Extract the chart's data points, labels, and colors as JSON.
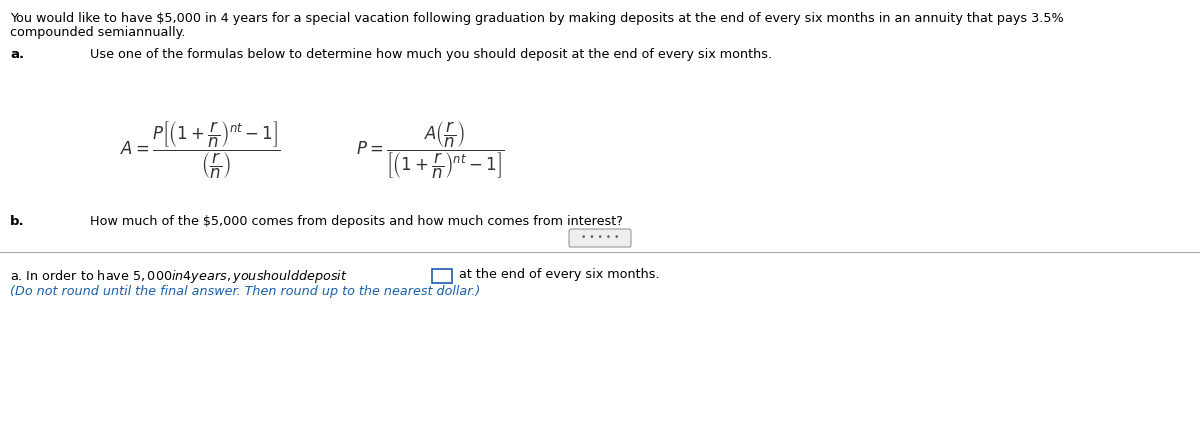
{
  "title_line1": "You would like to have $5,000 in 4 years for a special vacation following graduation by making deposits at the end of every six months in an annuity that pays 3.5%",
  "title_line2": "compounded semiannually.",
  "part_a_label": "a.",
  "part_a_text": "Use one of the formulas below to determine how much you should deposit at the end of every six months.",
  "part_b_label": "b.",
  "part_b_text": "How much of the $5,000 comes from deposits and how much comes from interest?",
  "answer_line1_pre": "a. In order to have $5,000 in 4 years, you should deposit $",
  "answer_line1_post": " at the end of every six months.",
  "answer_line2": "(Do not round until the final answer. Then round up to the nearest dollar.)",
  "bg_color": "#ffffff",
  "text_color": "#000000",
  "blue_color": "#1a5fa8",
  "divider_color": "#aaaaaa",
  "formula_color": "#333333",
  "dots_color": "#666666",
  "dots_box_color": "#cccccc",
  "formula_A": "$A = \\dfrac{P\\left[\\left(1+\\dfrac{r}{n}\\right)^{nt} - 1\\right]}{\\left(\\dfrac{r}{n}\\right)}$",
  "formula_P": "$P = \\dfrac{A\\left(\\dfrac{r}{n}\\right)}{\\left[\\left(1+\\dfrac{r}{n}\\right)^{nt} - 1\\right]}$",
  "fig_width": 12.0,
  "fig_height": 4.37,
  "dpi": 100
}
